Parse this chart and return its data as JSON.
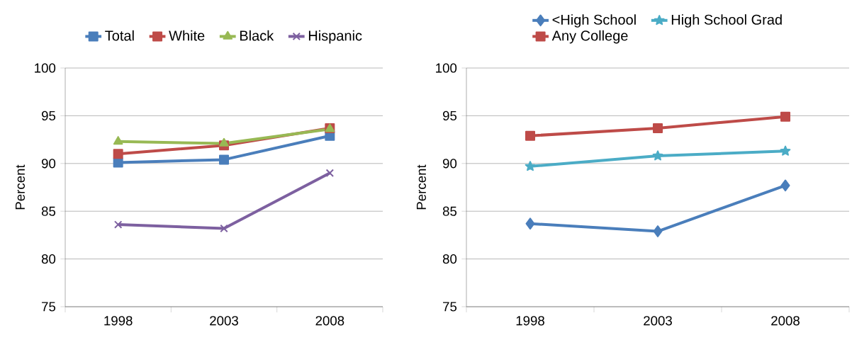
{
  "chart_data": [
    {
      "type": "line",
      "categories": [
        "1998",
        "2003",
        "2008"
      ],
      "ylabel": "Percent",
      "ylim": [
        75,
        100
      ],
      "yticks": [
        75,
        80,
        85,
        90,
        95,
        100
      ],
      "grid": "y",
      "legend": "top",
      "series": [
        {
          "name": "Total",
          "color": "#4a7ebb",
          "marker": "square",
          "values": [
            90.1,
            90.4,
            92.9
          ]
        },
        {
          "name": "White",
          "color": "#be4b48",
          "marker": "square",
          "values": [
            91.0,
            91.9,
            93.7
          ]
        },
        {
          "name": "Black",
          "color": "#98b954",
          "marker": "triangle",
          "values": [
            92.3,
            92.1,
            93.6
          ]
        },
        {
          "name": "Hispanic",
          "color": "#7d60a0",
          "marker": "cross",
          "values": [
            83.6,
            83.2,
            89.0
          ]
        }
      ]
    },
    {
      "type": "line",
      "categories": [
        "1998",
        "2003",
        "2008"
      ],
      "ylabel": "Percent",
      "ylim": [
        75,
        100
      ],
      "yticks": [
        75,
        80,
        85,
        90,
        95,
        100
      ],
      "grid": "y",
      "legend": "top",
      "series": [
        {
          "name": "<High School",
          "color": "#4a7ebb",
          "marker": "diamond",
          "values": [
            83.7,
            82.9,
            87.7
          ]
        },
        {
          "name": "High School Grad",
          "color": "#4bacc6",
          "marker": "star",
          "values": [
            89.7,
            90.8,
            91.3
          ]
        },
        {
          "name": "Any College",
          "color": "#be4b48",
          "marker": "square",
          "values": [
            92.9,
            93.7,
            94.9
          ]
        }
      ]
    }
  ]
}
